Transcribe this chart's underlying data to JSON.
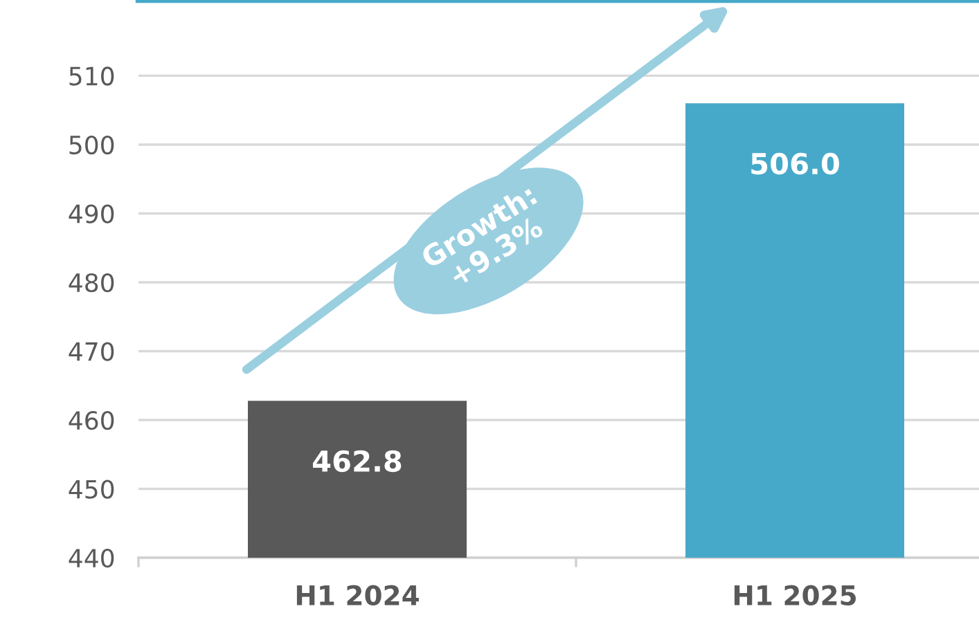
{
  "chart_data": {
    "type": "bar",
    "categories": [
      "H1 2024",
      "H1 2025"
    ],
    "values": [
      462.8,
      506.0
    ],
    "colors": [
      "#595959",
      "#47a9c9"
    ],
    "value_labels": [
      "462.8",
      "506.0"
    ],
    "ylim": [
      440,
      521
    ],
    "yticks": [
      440,
      450,
      460,
      470,
      480,
      490,
      500,
      510
    ],
    "grid": "y",
    "annotations": [
      "Growth:\n+9.3%"
    ]
  }
}
